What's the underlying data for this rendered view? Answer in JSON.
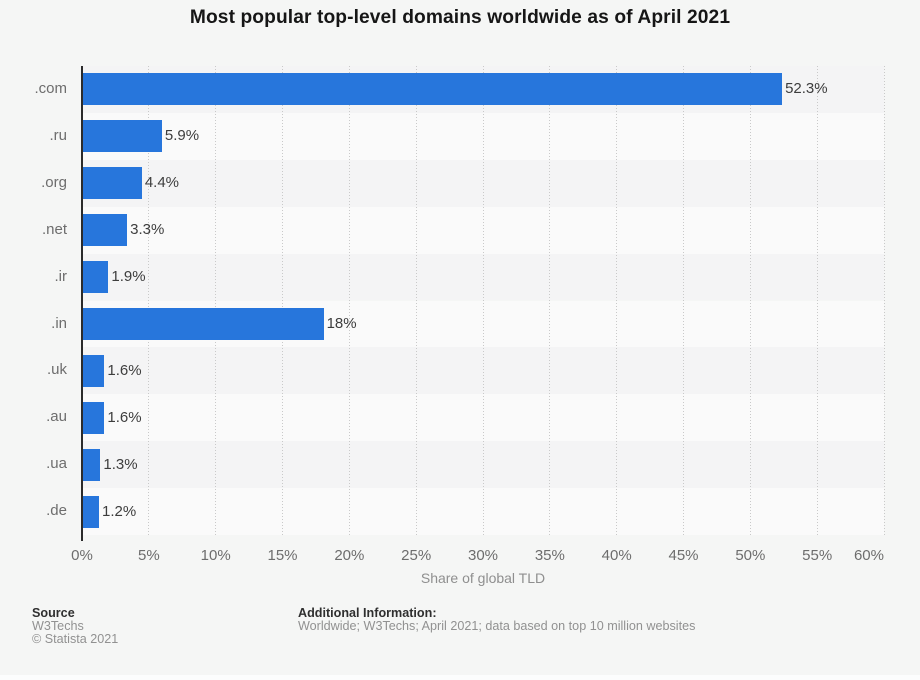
{
  "chart_data": {
    "type": "bar",
    "orientation": "horizontal",
    "title": "Most popular top-level domains worldwide as of April 2021",
    "categories": [
      ".com",
      ".ru",
      ".org",
      ".net",
      ".ir",
      ".in",
      ".uk",
      ".au",
      ".ua",
      ".de"
    ],
    "values": [
      52.3,
      5.9,
      4.4,
      3.3,
      1.9,
      18,
      1.6,
      1.6,
      1.3,
      1.2
    ],
    "value_labels": [
      "52.3%",
      "5.9%",
      "4.4%",
      "3.3%",
      "1.9%",
      "18%",
      "1.6%",
      "1.6%",
      "1.3%",
      "1.2%"
    ],
    "xlabel": "Share of global TLD",
    "xlim": [
      0,
      60
    ],
    "x_ticks": [
      "0%",
      "5%",
      "10%",
      "15%",
      "20%",
      "25%",
      "30%",
      "35%",
      "40%",
      "45%",
      "50%",
      "55%",
      "60%"
    ],
    "x_tick_values": [
      0,
      5,
      10,
      15,
      20,
      25,
      30,
      35,
      40,
      45,
      50,
      55,
      60
    ],
    "grid": "vertical-dotted",
    "legend": "none",
    "bar_color": "#2776dc",
    "row_band_colors": [
      "#f4f4f5",
      "#fafafa"
    ]
  },
  "footer": {
    "source_heading": "Source",
    "source_name": "W3Techs",
    "copyright": "© Statista 2021",
    "additional_heading": "Additional Information:",
    "additional_text": "Worldwide; W3Techs; April 2021; data based on top 10 million websites"
  }
}
